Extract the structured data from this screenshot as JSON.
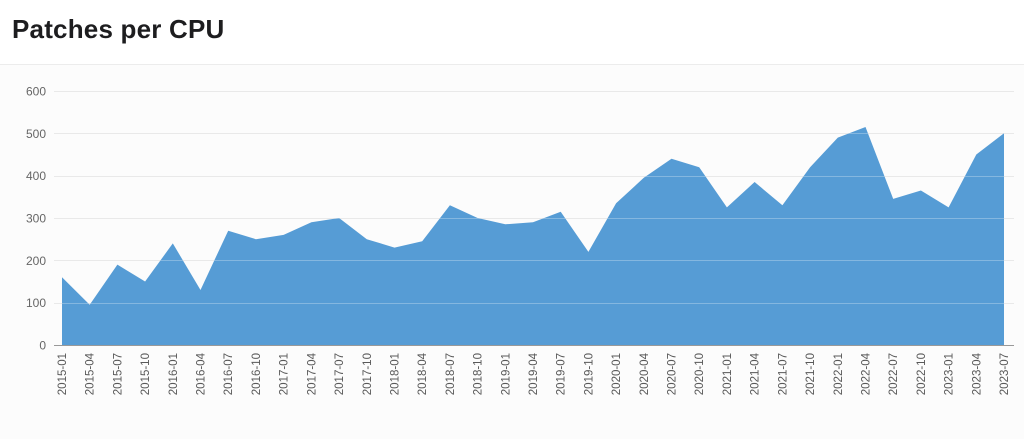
{
  "header": {
    "title": "Patches per CPU"
  },
  "chart_data": {
    "type": "area",
    "title": "Patches per CPU",
    "xlabel": "",
    "ylabel": "",
    "ylim": [
      0,
      600
    ],
    "yticks": [
      0,
      100,
      200,
      300,
      400,
      500,
      600
    ],
    "grid": "horizontal",
    "legend": "none",
    "x_tick_rotation": -90,
    "categories": [
      "2015-01",
      "2015-04",
      "2015-07",
      "2015-10",
      "2016-01",
      "2016-04",
      "2016-07",
      "2016-10",
      "2017-01",
      "2017-04",
      "2017-07",
      "2017-10",
      "2018-01",
      "2018-04",
      "2018-07",
      "2018-10",
      "2019-01",
      "2019-04",
      "2019-07",
      "2019-10",
      "2020-01",
      "2020-04",
      "2020-07",
      "2020-10",
      "2021-01",
      "2021-04",
      "2021-07",
      "2021-10",
      "2022-01",
      "2022-04",
      "2022-07",
      "2022-10",
      "2023-01",
      "2023-04",
      "2023-07"
    ],
    "values": [
      160,
      95,
      190,
      150,
      240,
      130,
      270,
      250,
      260,
      290,
      300,
      250,
      230,
      245,
      330,
      300,
      285,
      290,
      315,
      220,
      335,
      395,
      440,
      420,
      325,
      385,
      330,
      420,
      490,
      515,
      345,
      365,
      325,
      450,
      500
    ],
    "colors": {
      "area_fill": "#4D97D3",
      "grid_line": "#e9e9e9",
      "axis_line": "#999999",
      "y_tick_text": "#666666",
      "x_tick_text": "#595959",
      "title_text": "#1d1d1f",
      "panel_bg": "#fcfcfc",
      "panel_border": "#ececec"
    }
  }
}
